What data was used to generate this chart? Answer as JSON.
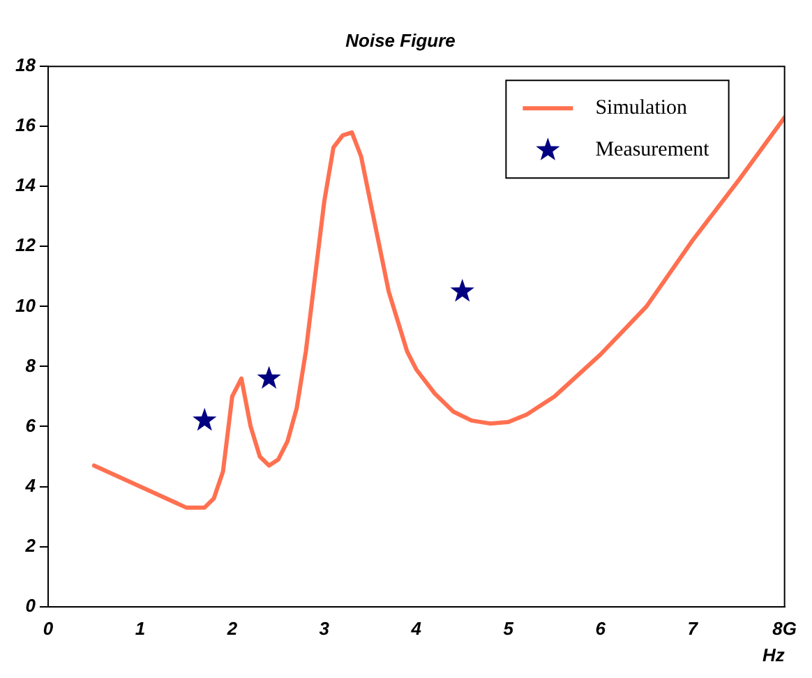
{
  "chart_data": {
    "type": "line",
    "title": "Noise Figure",
    "xlabel": "Hz",
    "xlim": [
      0,
      8
    ],
    "ylim": [
      0,
      18
    ],
    "xticks": [
      0,
      1,
      2,
      3,
      4,
      5,
      6,
      7,
      {
        "value": 8,
        "label": "8G"
      }
    ],
    "yticks": [
      0,
      2,
      4,
      6,
      8,
      10,
      12,
      14,
      16,
      18
    ],
    "grid": false,
    "legend": "top right",
    "series": [
      {
        "name": "Simulation",
        "color": "#ff7050",
        "marker": "none",
        "line_style": "solid",
        "x": [
          0.5,
          1.0,
          1.5,
          1.7,
          1.8,
          1.9,
          2.0,
          2.1,
          2.2,
          2.3,
          2.4,
          2.5,
          2.6,
          2.7,
          2.8,
          2.9,
          3.0,
          3.1,
          3.2,
          3.3,
          3.4,
          3.5,
          3.6,
          3.7,
          3.8,
          3.9,
          4.0,
          4.2,
          4.4,
          4.6,
          4.8,
          5.0,
          5.2,
          5.5,
          6.0,
          6.5,
          7.0,
          7.5,
          8.0
        ],
        "values": [
          4.7,
          4.0,
          3.3,
          3.3,
          3.6,
          4.5,
          7.0,
          7.6,
          6.0,
          5.0,
          4.7,
          4.9,
          5.5,
          6.6,
          8.5,
          11.0,
          13.5,
          15.3,
          15.7,
          15.8,
          15.0,
          13.5,
          12.0,
          10.5,
          9.5,
          8.5,
          7.9,
          7.1,
          6.5,
          6.2,
          6.1,
          6.15,
          6.4,
          7.0,
          8.4,
          10.0,
          12.2,
          14.2,
          16.3
        ]
      },
      {
        "name": "Measurement",
        "type": "scatter",
        "color": "#000080",
        "marker": "star",
        "x": [
          1.7,
          2.4,
          4.5
        ],
        "values": [
          6.2,
          7.6,
          10.5
        ]
      }
    ]
  }
}
